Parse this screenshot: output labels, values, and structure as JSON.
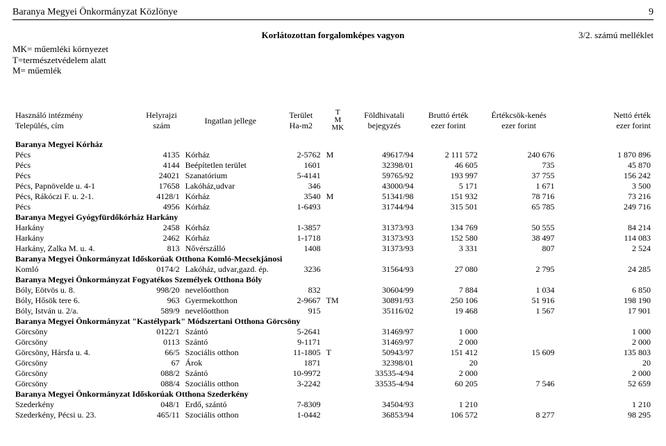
{
  "header": {
    "title_left": "Baranya Megyei Önkormányzat Közlönye",
    "page_number": "9",
    "center_title": "Korlátozottan forgalomképes vagyon",
    "appendix": "3/2. számú melléklet",
    "legend": {
      "l1": "MK= műemléki környezet",
      "l2": "T=természetvédelem alatt",
      "l3": "M= műemlék"
    }
  },
  "columns": {
    "c0a": "Használó intézmény",
    "c0b": "Település, cím",
    "c1a": "Helyrajzi",
    "c1b": "szám",
    "c2": "Ingatlan jellege",
    "c3a": "Terület",
    "c3b": "Ha-m2",
    "c4a": "T",
    "c4b": "M",
    "c4c": "MK",
    "c5a": "Földhivatali",
    "c5b": "bejegyzés",
    "c6a": "Bruttó érték",
    "c6b": "ezer forint",
    "c7a": "Értékcsök-kenés",
    "c7b": "ezer forint",
    "c8a": "Nettó érték",
    "c8b": "ezer forint"
  },
  "sections": [
    {
      "title": "Baranya Megyei Kórház",
      "rows": [
        [
          "Pécs",
          "4135",
          "Kórház",
          "2-5762",
          "M",
          "49617/94",
          "2 111 572",
          "240 676",
          "1 870 896"
        ],
        [
          "Pécs",
          "4144",
          "Beépítetlen terület",
          "1601",
          "",
          "32398/01",
          "46 605",
          "735",
          "45 870"
        ],
        [
          "Pécs",
          "24021",
          "Szanatórium",
          "5-4141",
          "",
          "59765/92",
          "193 997",
          "37 755",
          "156 242"
        ],
        [
          "Pécs, Papnövelde u. 4-1",
          "17658",
          "Lakóház,udvar",
          "346",
          "",
          "43000/94",
          "5 171",
          "1 671",
          "3 500"
        ],
        [
          "Pécs, Rákóczi F. u. 2-1.",
          "4128/1",
          "Kórház",
          "3540",
          "M",
          "51341/98",
          "151 932",
          "78 716",
          "73 216"
        ],
        [
          "Pécs",
          "4956",
          "Kórház",
          "1-6493",
          "",
          "31744/94",
          "315 501",
          "65 785",
          "249 716"
        ]
      ]
    },
    {
      "title": "Baranya Megyei Gyógyfürdőkórház Harkány",
      "rows": [
        [
          "Harkány",
          "2458",
          "Kórház",
          "1-3857",
          "",
          "31373/93",
          "134 769",
          "50 555",
          "84 214"
        ],
        [
          "Harkány",
          "2462",
          "Kórház",
          "1-1718",
          "",
          "31373/93",
          "152 580",
          "38 497",
          "114 083"
        ],
        [
          "Harkány, Zalka M. u. 4.",
          "813",
          "Nővérszálló",
          "1408",
          "",
          "31373/93",
          "3 331",
          "807",
          "2 524"
        ]
      ]
    },
    {
      "title": "Baranya Megyei Önkormányzat Időskorúak Otthona Komló-Mecsekjánosi",
      "rows": [
        [
          "Komló",
          "0174/2",
          "Lakóház, udvar,gazd. ép.",
          "3236",
          "",
          "31564/93",
          "27 080",
          "2 795",
          "24 285"
        ]
      ]
    },
    {
      "title": "Baranya Megyei Önkormányzat Fogyatékos Személyek Otthona Bóly",
      "rows": [
        [
          "Bóly, Eötvös u. 8.",
          "998/20",
          "nevelőotthon",
          "832",
          "",
          "30604/99",
          "7 884",
          "1 034",
          "6 850"
        ],
        [
          "Bóly, Hősök tere 6.",
          "963",
          "Gyermekotthon",
          "2-9667",
          "TM",
          "30891/93",
          "250 106",
          "51 916",
          "198 190"
        ],
        [
          "Bóly, István u. 2/a.",
          "589/9",
          "nevelőotthon",
          "915",
          "",
          "35116/02",
          "19 468",
          "1 567",
          "17 901"
        ]
      ]
    },
    {
      "title": "Baranya Megyei Önkormányzat \"Kastélypark\" Módszertani Otthona Görcsöny",
      "rows": [
        [
          "Görcsöny",
          "0122/1",
          "Szántó",
          "5-2641",
          "",
          "31469/97",
          "1 000",
          "",
          "1 000"
        ],
        [
          "Görcsöny",
          "0113",
          "Szántó",
          "9-1171",
          "",
          "31469/97",
          "2 000",
          "",
          "2 000"
        ],
        [
          "Görcsöny, Hársfa u. 4.",
          "66/5",
          "Szociális otthon",
          "11-1805",
          "T",
          "50943/97",
          "151 412",
          "15 609",
          "135 803"
        ],
        [
          "Görcsöny",
          "67",
          "Árok",
          "1871",
          "",
          "32398/01",
          "20",
          "",
          "20"
        ],
        [
          "Görcsöny",
          "088/2",
          "Szántó",
          "10-9972",
          "",
          "33535-4/94",
          "2 000",
          "",
          "2 000"
        ],
        [
          "Görcsöny",
          "088/4",
          "Szociális otthon",
          "3-2242",
          "",
          "33535-4/94",
          "60 205",
          "7 546",
          "52 659"
        ]
      ]
    },
    {
      "title": "Baranya Megyei Önkormányzat Időskorúak Otthona Szederkény",
      "rows": [
        [
          "Szederkény",
          "048/1",
          "Erdő, szántó",
          "7-8309",
          "",
          "34504/93",
          "1 210",
          "",
          "1 210"
        ],
        [
          "Szederkény, Pécsi u. 23.",
          "465/11",
          "Szociális otthon",
          "1-0442",
          "",
          "36853/94",
          "106 572",
          "8 277",
          "98 295"
        ]
      ]
    }
  ]
}
